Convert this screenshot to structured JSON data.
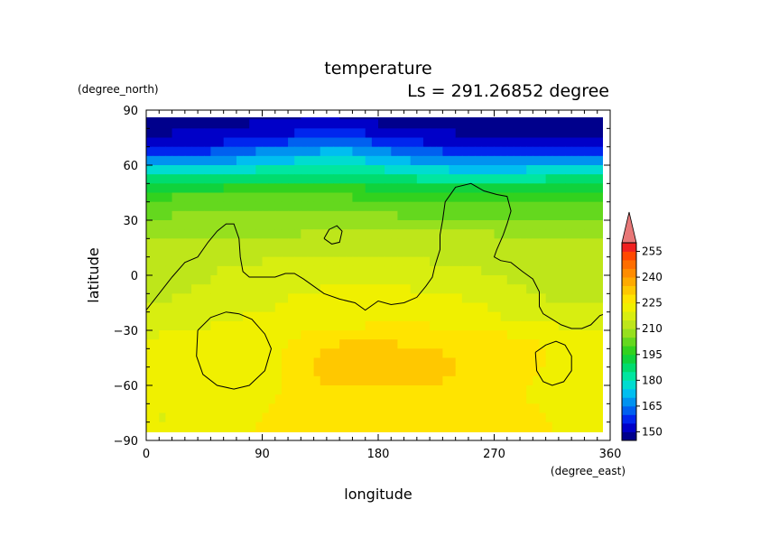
{
  "chart_data": {
    "type": "heatmap",
    "title": "temperature",
    "subtitle": "Ls = 291.26852 degree",
    "xlabel": "longitude",
    "ylabel": "latitude",
    "xunit": "(degree_east)",
    "yunit": "(degree_north)",
    "xlim": [
      0,
      360
    ],
    "ylim": [
      -90,
      90
    ],
    "xticks": [
      0,
      90,
      180,
      270,
      360
    ],
    "yticks": [
      90,
      60,
      30,
      0,
      -30,
      -60,
      -90
    ],
    "colorbar": {
      "ticks": [
        150,
        165,
        180,
        195,
        210,
        225,
        240,
        255
      ],
      "levels": [
        145,
        150,
        155,
        160,
        165,
        170,
        175,
        180,
        185,
        190,
        195,
        200,
        205,
        210,
        215,
        220,
        225,
        230,
        235,
        240,
        245,
        250,
        255,
        260
      ],
      "colors": [
        "#00008c",
        "#0000c8",
        "#0026ee",
        "#0060f0",
        "#0092f0",
        "#00bef0",
        "#00dcd0",
        "#00e6a0",
        "#00dc6e",
        "#10d23c",
        "#32d21e",
        "#64d81e",
        "#96e01e",
        "#bee61a",
        "#d8ee10",
        "#f0f000",
        "#ffe400",
        "#ffc800",
        "#ffaa00",
        "#ff8c00",
        "#ff6e00",
        "#ff4800",
        "#f02020",
        "#e87878"
      ],
      "extend": "max"
    },
    "data": {
      "x": [
        0,
        30,
        60,
        90,
        120,
        150,
        180,
        210,
        240,
        270,
        300,
        330,
        360
      ],
      "y": [
        85,
        75,
        65,
        55,
        45,
        35,
        25,
        15,
        5,
        -5,
        -15,
        -25,
        -35,
        -45,
        -55,
        -65,
        -75,
        -85
      ],
      "z": [
        [
          148,
          148,
          148,
          149,
          150,
          150,
          148,
          147,
          147,
          147,
          147,
          147,
          148
        ],
        [
          150,
          151,
          152,
          155,
          157,
          160,
          156,
          152,
          151,
          150,
          150,
          149,
          150
        ],
        [
          160,
          161,
          164,
          169,
          172,
          175,
          170,
          165,
          162,
          161,
          161,
          160,
          160
        ],
        [
          181,
          182,
          183,
          184,
          185,
          186,
          184,
          181,
          179,
          178,
          180,
          183,
          181
        ],
        [
          198,
          199,
          199,
          199,
          199,
          199,
          198,
          197,
          196,
          196,
          197,
          198,
          198
        ],
        [
          203,
          204,
          204,
          204,
          204,
          204,
          204,
          203,
          203,
          203,
          203,
          203,
          203
        ],
        [
          208,
          209,
          209,
          209,
          209,
          209,
          210,
          209,
          209,
          209,
          209,
          208,
          208
        ],
        [
          211,
          212,
          212,
          212,
          213,
          213,
          213,
          213,
          213,
          213,
          212,
          211,
          211
        ],
        [
          212,
          213,
          215,
          216,
          217,
          217,
          217,
          216,
          215,
          214,
          213,
          212,
          212
        ],
        [
          213,
          214,
          216,
          217,
          219,
          220,
          220,
          219,
          218,
          216,
          214,
          213,
          213
        ],
        [
          214,
          216,
          218,
          219,
          221,
          222,
          223,
          222,
          221,
          219,
          216,
          214,
          214
        ],
        [
          219,
          219,
          220,
          221,
          222,
          223,
          224,
          224,
          223,
          221,
          219,
          219,
          219
        ],
        [
          220,
          221,
          221,
          222,
          226,
          229,
          229,
          229,
          228,
          227,
          225,
          222,
          220
        ],
        [
          220,
          221,
          221,
          222,
          228,
          233,
          234,
          232,
          230,
          229,
          226,
          223,
          220
        ],
        [
          220,
          221,
          221,
          222,
          228,
          233,
          233,
          231,
          230,
          229,
          225,
          222,
          220
        ],
        [
          220,
          221,
          221,
          223,
          227,
          228,
          229,
          229,
          229,
          229,
          224,
          222,
          220
        ],
        [
          220,
          220,
          222,
          225,
          228,
          229,
          229,
          229,
          229,
          229,
          226,
          223,
          220
        ],
        [
          220,
          220,
          222,
          226,
          228,
          229,
          229,
          229,
          229,
          229,
          227,
          223,
          220
        ]
      ]
    },
    "contour_lines": [
      [
        [
          0,
          -19
        ],
        [
          10,
          -10
        ],
        [
          20,
          -1
        ],
        [
          30,
          7
        ],
        [
          40,
          10
        ],
        [
          48,
          18
        ],
        [
          55,
          24
        ],
        [
          62,
          28
        ],
        [
          68,
          28
        ],
        [
          72,
          20
        ],
        [
          73,
          10
        ],
        [
          75,
          2
        ],
        [
          80,
          -1
        ],
        [
          90,
          -1
        ],
        [
          100,
          -1
        ],
        [
          108,
          1
        ],
        [
          115,
          1
        ],
        [
          122,
          -2
        ],
        [
          130,
          -6
        ],
        [
          138,
          -10
        ],
        [
          150,
          -13
        ],
        [
          162,
          -15
        ],
        [
          170,
          -19
        ],
        [
          180,
          -14
        ],
        [
          190,
          -16
        ],
        [
          200,
          -15
        ],
        [
          210,
          -12
        ],
        [
          217,
          -6
        ],
        [
          222,
          -1
        ],
        [
          224,
          5
        ],
        [
          228,
          14
        ],
        [
          228,
          22
        ],
        [
          230,
          30
        ],
        [
          232,
          40
        ],
        [
          240,
          48
        ],
        [
          252,
          50
        ],
        [
          262,
          46
        ],
        [
          272,
          44
        ],
        [
          280,
          43
        ],
        [
          283,
          35
        ],
        [
          280,
          28
        ],
        [
          277,
          22
        ],
        [
          272,
          14
        ],
        [
          270,
          10
        ],
        [
          275,
          8
        ],
        [
          283,
          7
        ],
        [
          292,
          2
        ],
        [
          300,
          -2
        ],
        [
          305,
          -9
        ],
        [
          305,
          -17
        ],
        [
          308,
          -21
        ],
        [
          315,
          -24
        ],
        [
          322,
          -27
        ],
        [
          330,
          -29
        ],
        [
          338,
          -29
        ],
        [
          345,
          -27
        ],
        [
          352,
          -22
        ],
        [
          360,
          -20
        ]
      ],
      [
        [
          138,
          20
        ],
        [
          142,
          25
        ],
        [
          148,
          27
        ],
        [
          152,
          24
        ],
        [
          150,
          18
        ],
        [
          144,
          17
        ],
        [
          138,
          20
        ]
      ],
      [
        [
          40,
          -30
        ],
        [
          50,
          -23
        ],
        [
          62,
          -20
        ],
        [
          72,
          -21
        ],
        [
          82,
          -24
        ],
        [
          92,
          -32
        ],
        [
          97,
          -40
        ],
        [
          92,
          -52
        ],
        [
          80,
          -60
        ],
        [
          68,
          -62
        ],
        [
          55,
          -60
        ],
        [
          44,
          -54
        ],
        [
          39,
          -44
        ],
        [
          40,
          -30
        ]
      ],
      [
        [
          302,
          -42
        ],
        [
          310,
          -38
        ],
        [
          318,
          -36
        ],
        [
          325,
          -38
        ],
        [
          330,
          -44
        ],
        [
          330,
          -52
        ],
        [
          324,
          -58
        ],
        [
          315,
          -60
        ],
        [
          308,
          -58
        ],
        [
          303,
          -52
        ],
        [
          302,
          -42
        ]
      ]
    ]
  }
}
